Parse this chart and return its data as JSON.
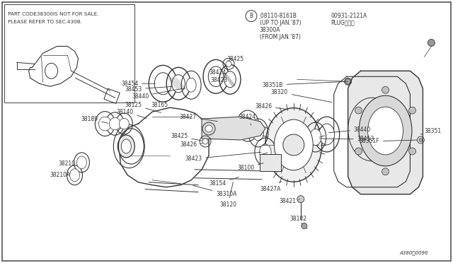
{
  "bg_color": "#ffffff",
  "border_color": "#666666",
  "line_color": "#333333",
  "text_color": "#333333",
  "inset_note_line1": "PART CODE38300IS NOT FOR SALE.",
  "inset_note_line2": "PLEASE REFER TO SEC.430B.",
  "ref_note1": "¸08110-8161B",
  "ref_note2": "(UP TO JAN.'87)",
  "ref_note3": "38300A",
  "ref_note4": "(FROM JAN.'87)",
  "plug_label": "00931-2121A",
  "plug_sub": "PLUGプラグ",
  "diagram_id": "A380む0096"
}
